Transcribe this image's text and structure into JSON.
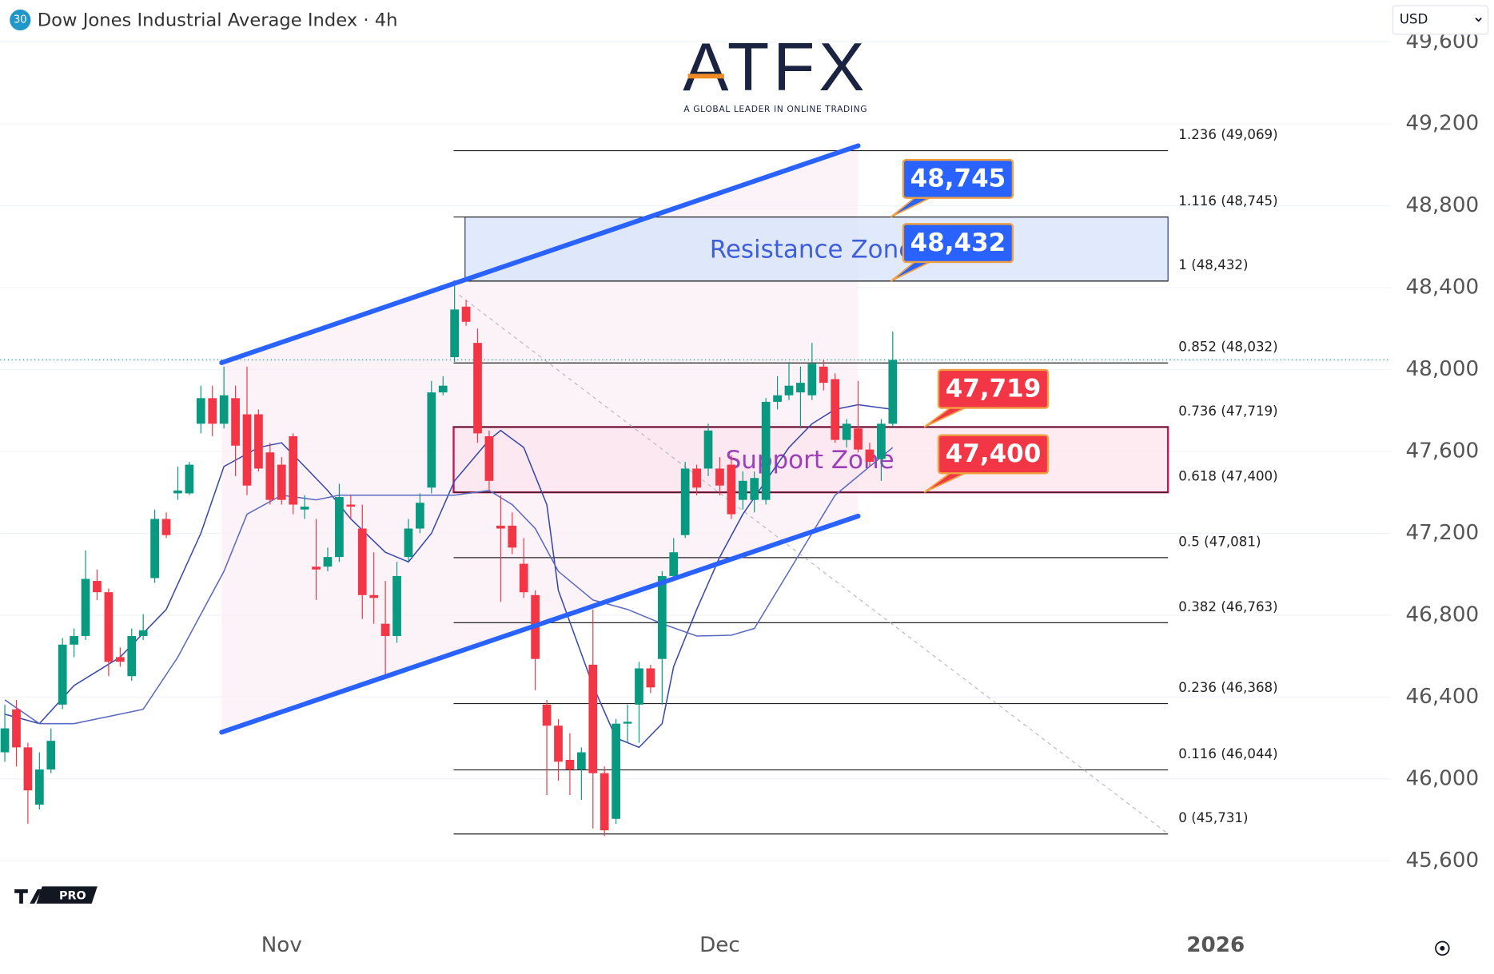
{
  "header": {
    "badge": "30",
    "title": "Dow Jones Industrial Average Index · 4h",
    "currency": "USD",
    "logo": "ATFX",
    "logo_tagline": "A GLOBAL LEADER IN ONLINE TRADING",
    "platform_badge": "PRO"
  },
  "chart_data": {
    "type": "candlestick",
    "up_color": "#089981",
    "down_color": "#f23645",
    "open": [
      46130,
      46340,
      46154,
      45874,
      46046,
      46363,
      46656,
      46698,
      46967,
      46912,
      46595,
      46502,
      46698,
      46981,
      47270,
      47395,
      47395,
      47735,
      47860,
      47735,
      47860,
      47781,
      47781,
      47595,
      47535,
      47674,
      47316,
      47037,
      47037,
      47084,
      47340,
      47223,
      46898,
      46758,
      46698,
      47084,
      47223,
      47423,
      47888,
      48060,
      48307,
      48130,
      47674,
      47237,
      47237,
      47051,
      46898,
      46363,
      46260,
      46093,
      46046,
      46558,
      46028,
      45805,
      46270,
      46363,
      46540,
      46586,
      46991,
      47191,
      47516,
      47516,
      47516,
      47535,
      47363,
      47363,
      47363,
      47842,
      47874,
      47888,
      47874,
      48014,
      47953,
      47656,
      47712,
      47609,
      47563,
      47735
    ],
    "high": [
      46363,
      46386,
      46177,
      46130,
      46247,
      46688,
      46735,
      47116,
      47023,
      46930,
      46642,
      46735,
      46805,
      47316,
      47302,
      47526,
      47549,
      47921,
      47921,
      48014,
      47921,
      48014,
      47805,
      47642,
      47572,
      47688,
      47386,
      47270,
      47130,
      47442,
      47386,
      47340,
      47107,
      46967,
      47060,
      47270,
      47395,
      47944,
      47967,
      48409,
      48340,
      48200,
      47702,
      47386,
      47302,
      47177,
      46921,
      46386,
      46293,
      46223,
      46154,
      46828,
      46061,
      46293,
      46363,
      46572,
      46558,
      47014,
      47177,
      47549,
      47535,
      47735,
      47572,
      47581,
      47502,
      47502,
      47860,
      47967,
      48037,
      48014,
      48130,
      48047,
      47981,
      47758,
      47944,
      47642,
      47758,
      48186
    ],
    "low": [
      46084,
      46061,
      45781,
      45851,
      46028,
      46340,
      46595,
      46679,
      46874,
      46502,
      46549,
      46479,
      46679,
      46958,
      47177,
      47363,
      47386,
      47688,
      47674,
      47712,
      47479,
      47386,
      47502,
      47340,
      47340,
      47293,
      47270,
      46874,
      47014,
      47060,
      47270,
      46781,
      46758,
      46502,
      46665,
      47060,
      47200,
      47395,
      47874,
      48037,
      48214,
      47642,
      47409,
      46865,
      47098,
      46884,
      46433,
      45921,
      45991,
      45921,
      45898,
      45758,
      45721,
      45781,
      46177,
      46177,
      46419,
      46363,
      46967,
      47177,
      47386,
      47479,
      47386,
      47270,
      47316,
      47302,
      47340,
      47805,
      47851,
      47712,
      47851,
      47898,
      47642,
      47619,
      47595,
      47526,
      47456,
      47721
    ],
    "close": [
      46247,
      46154,
      45944,
      46046,
      46186,
      46656,
      46698,
      46977,
      46912,
      46572,
      46572,
      46698,
      46726,
      47270,
      47191,
      47409,
      47535,
      47860,
      47735,
      47874,
      47628,
      47433,
      47516,
      47363,
      47363,
      47340,
      47330,
      47023,
      47084,
      47377,
      47330,
      46898,
      46884,
      46698,
      46991,
      47223,
      47349,
      47888,
      47921,
      48293,
      48233,
      47688,
      47456,
      47223,
      47130,
      46912,
      46586,
      46260,
      46084,
      46046,
      46130,
      46028,
      45749,
      46270,
      46279,
      46540,
      46447,
      46991,
      47107,
      47516,
      47423,
      47702,
      47433,
      47293,
      47456,
      47470,
      47842,
      47874,
      47921,
      47935,
      48028,
      47935,
      47656,
      47735,
      47609,
      47549,
      47735,
      48047
    ],
    "moving_averages": [
      {
        "color": "#3949ab",
        "x": [
          0,
          3,
          6,
          10,
          14,
          17,
          19,
          22,
          24,
          26,
          28,
          30,
          33,
          35,
          37,
          39,
          42,
          43,
          45,
          47,
          48,
          51,
          53,
          55,
          57,
          58,
          60,
          62,
          64,
          66,
          68,
          70,
          72,
          74,
          77
        ],
        "values": [
          46316,
          46270,
          46456,
          46595,
          46828,
          47200,
          47526,
          47619,
          47642,
          47526,
          47409,
          47270,
          47107,
          47060,
          47200,
          47456,
          47656,
          47702,
          47619,
          47340,
          46921,
          46456,
          46200,
          46154,
          46270,
          46549,
          46828,
          47084,
          47293,
          47456,
          47619,
          47735,
          47805,
          47828,
          47805
        ]
      },
      {
        "color": "#5c6bc0",
        "x": [
          0,
          3,
          6,
          12,
          15,
          19,
          21,
          24,
          27,
          29,
          33,
          36,
          39,
          42,
          44,
          46,
          48,
          51,
          54,
          57,
          60,
          63,
          65,
          67,
          70,
          72,
          75,
          77
        ],
        "values": [
          46386,
          46270,
          46270,
          46340,
          46595,
          47014,
          47293,
          47386,
          47363,
          47386,
          47386,
          47386,
          47386,
          47409,
          47340,
          47223,
          47014,
          46874,
          46828,
          46758,
          46698,
          46702,
          46735,
          46921,
          47200,
          47386,
          47526,
          47619
        ]
      }
    ],
    "channel": [
      {
        "color": "#2962ff",
        "x": [
          18.8,
          74
        ],
        "values": [
          48033,
          49093
        ]
      },
      {
        "color": "#2962ff",
        "x": [
          18.8,
          74
        ],
        "values": [
          46228,
          47284
        ]
      }
    ],
    "fib_levels": [
      {
        "value": 49069,
        "label": "1.236 (49,069)"
      },
      {
        "value": 48745,
        "label": "1.116 (48,745)"
      },
      {
        "value": 48432,
        "label": "1 (48,432)"
      },
      {
        "value": 48032,
        "label": "0.852 (48,032)"
      },
      {
        "value": 47719,
        "label": "0.736 (47,719)"
      },
      {
        "value": 47400,
        "label": "0.618 (47,400)"
      },
      {
        "value": 47081,
        "label": "0.5 (47,081)"
      },
      {
        "value": 46763,
        "label": "0.382 (46,763)"
      },
      {
        "value": 46368,
        "label": "0.236 (46,368)"
      },
      {
        "value": 46044,
        "label": "0.116 (46,044)"
      },
      {
        "value": 45731,
        "label": "0 (45,731)"
      }
    ],
    "zones": [
      {
        "label": "Resistance Zone",
        "low": 48432,
        "high": 48745,
        "fill": "#d6e3fb",
        "stroke": "#2a3a8a",
        "text_color": "#3f5fd8"
      },
      {
        "label": "Support Zone",
        "low": 47400,
        "high": 47719,
        "fill": "#fce4ec",
        "stroke": "#c2185b",
        "text_color": "#9c3fb8"
      }
    ],
    "callouts": [
      {
        "value": 48745,
        "label": "48,745",
        "color": "#2962ff"
      },
      {
        "value": 48432,
        "label": "48,432",
        "color": "#2962ff"
      },
      {
        "value": 47719,
        "label": "47,719",
        "color": "#f23645"
      },
      {
        "value": 47400,
        "label": "47,400",
        "color": "#f23645"
      }
    ],
    "xlim": [
      -0.4,
      120.2
    ],
    "xticks": [
      {
        "value": 24,
        "label": "Nov"
      },
      {
        "value": 62,
        "label": "Dec"
      },
      {
        "value": 105,
        "label": "2026"
      }
    ],
    "ylim": [
      45340,
      49805
    ],
    "yticks": [
      {
        "value": 45600,
        "label": "45,600"
      },
      {
        "value": 46000,
        "label": "46,000"
      },
      {
        "value": 46400,
        "label": "46,400"
      },
      {
        "value": 46800,
        "label": "46,800"
      },
      {
        "value": 47200,
        "label": "47,200"
      },
      {
        "value": 47600,
        "label": "47,600"
      },
      {
        "value": 48000,
        "label": "48,000"
      },
      {
        "value": 48400,
        "label": "48,400"
      },
      {
        "value": 48800,
        "label": "48,800"
      },
      {
        "value": 49200,
        "label": "49,200"
      },
      {
        "value": 49600,
        "label": "49,600"
      }
    ],
    "grid": true
  }
}
